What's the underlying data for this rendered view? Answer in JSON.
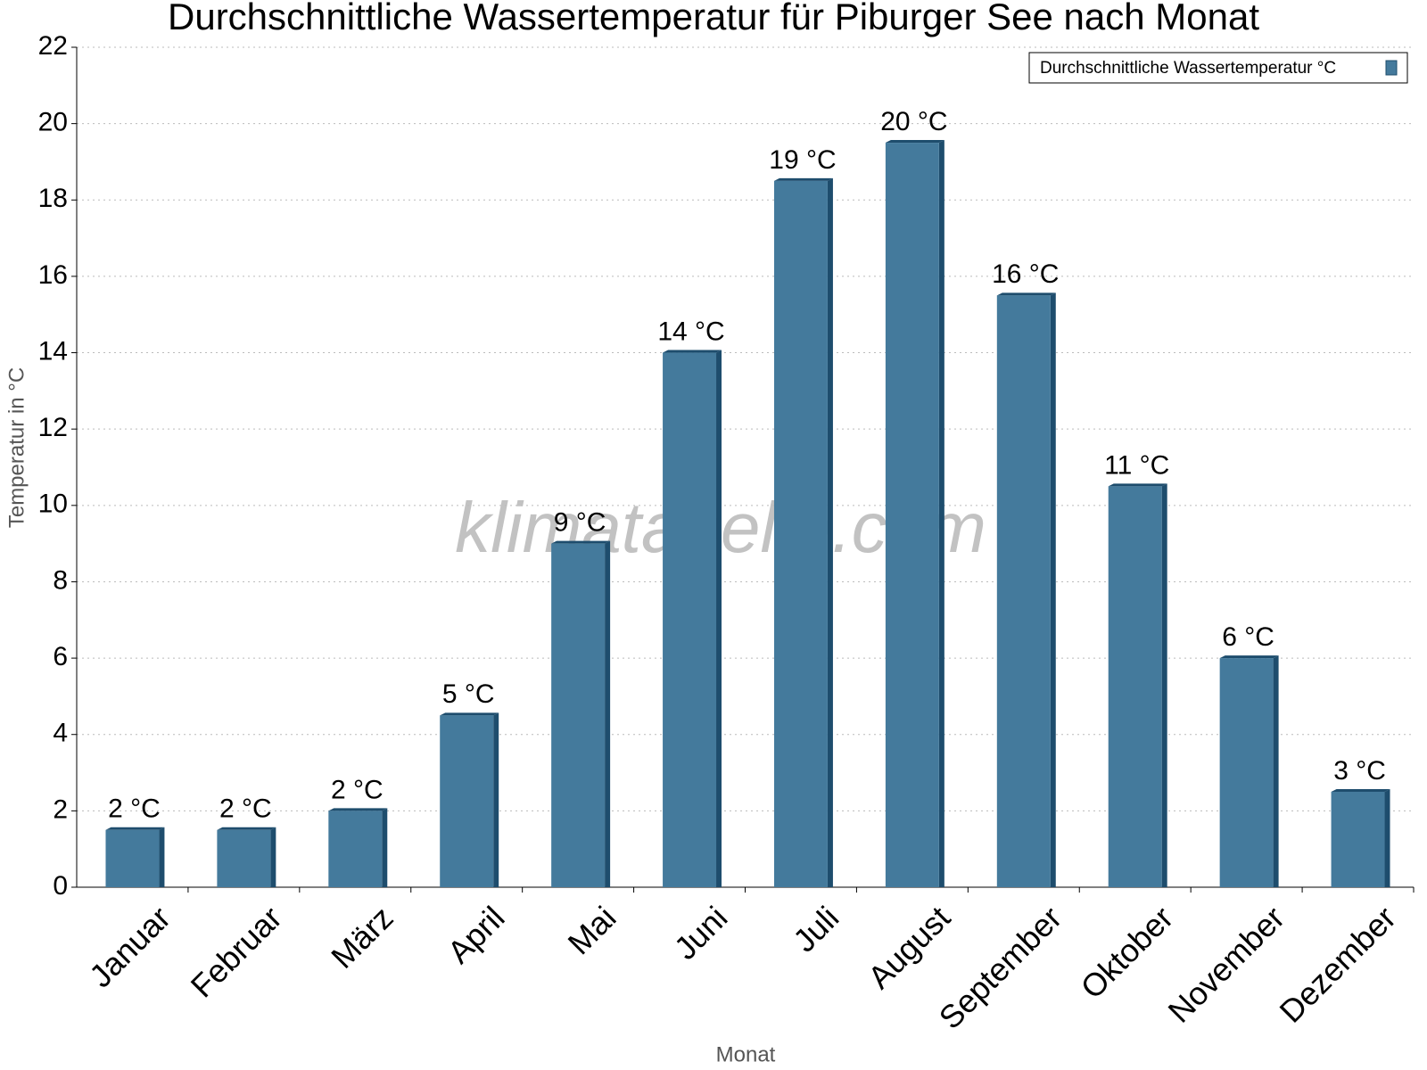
{
  "chart_data": {
    "type": "bar",
    "title": "Durchschnittliche Wassertemperatur für Piburger See nach Monat",
    "x_label": "Monat",
    "y_label": "Temperatur in °C",
    "watermark": "klimatabelle.com",
    "legend_position": "upper right",
    "grid": true,
    "categories": [
      "Januar",
      "Februar",
      "März",
      "April",
      "Mai",
      "Juni",
      "Juli",
      "August",
      "September",
      "Oktober",
      "November",
      "Dezember"
    ],
    "series": [
      {
        "name": "Durchschnittliche Wassertemperatur °C",
        "color": "#447a9c",
        "values": [
          1.5,
          1.5,
          2.0,
          4.5,
          9.0,
          14.0,
          18.5,
          19.5,
          15.5,
          10.5,
          6.0,
          2.5
        ],
        "value_labels": [
          "2 °C",
          "2 °C",
          "2 °C",
          "5 °C",
          "9 °C",
          "14 °C",
          "19 °C",
          "20 °C",
          "16 °C",
          "11 °C",
          "6 °C",
          "3 °C"
        ]
      }
    ],
    "ylim": [
      0,
      22
    ],
    "yticks": [
      0,
      2,
      4,
      6,
      8,
      10,
      12,
      14,
      16,
      18,
      20,
      22
    ]
  }
}
